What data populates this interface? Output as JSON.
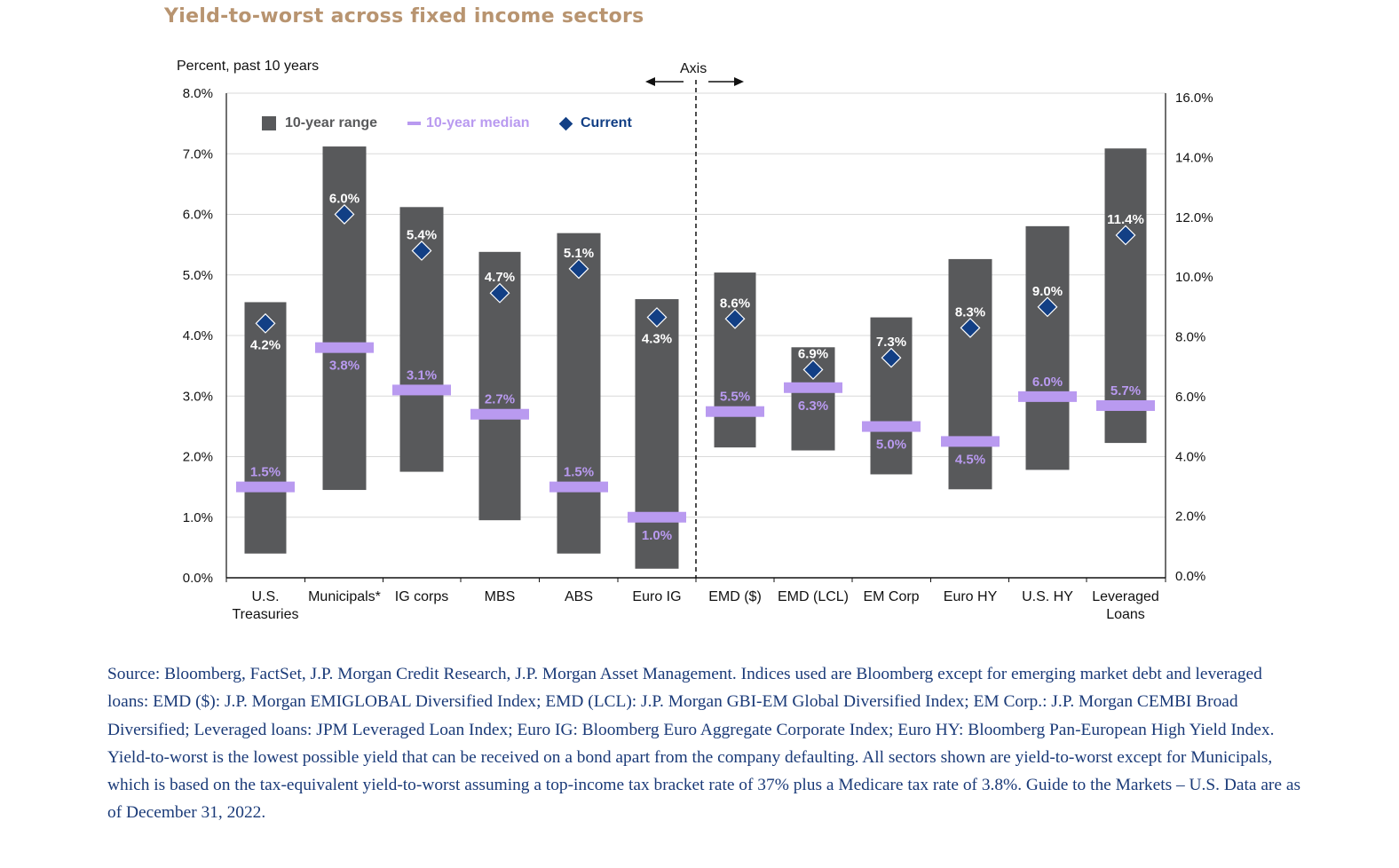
{
  "title": "Yield-to-worst across fixed income sectors",
  "subtitle": "Percent, past 10 years",
  "axis_note": "Axis",
  "colors": {
    "title": "#b89470",
    "range_bar": "#58595b",
    "median": "#b99af0",
    "current": "#123f85",
    "source_text": "#1a3a78"
  },
  "legend": {
    "range": "10-year range",
    "median": "10-year median",
    "current": "Current"
  },
  "chart_data": {
    "type": "bar",
    "categories": [
      "U.S. Treasuries",
      "Municipals*",
      "IG corps",
      "MBS",
      "ABS",
      "Euro IG",
      "EMD ($)",
      "EMD (LCL)",
      "EM Corp",
      "Euro HY",
      "U.S. HY",
      "Leveraged Loans"
    ],
    "axis": [
      "left",
      "left",
      "left",
      "left",
      "left",
      "left",
      "right",
      "right",
      "right",
      "right",
      "right",
      "right"
    ],
    "range_low": [
      0.4,
      1.45,
      1.75,
      0.95,
      0.4,
      0.15,
      4.3,
      4.2,
      3.4,
      2.9,
      3.55,
      4.45
    ],
    "range_high": [
      4.55,
      7.12,
      6.12,
      5.38,
      5.69,
      4.6,
      10.15,
      7.65,
      8.65,
      10.6,
      11.7,
      14.3
    ],
    "median": [
      1.5,
      3.8,
      3.1,
      2.7,
      1.5,
      1.0,
      5.5,
      6.3,
      5.0,
      4.5,
      6.0,
      5.7
    ],
    "median_label": [
      "1.5%",
      "3.8%",
      "3.1%",
      "2.7%",
      "1.5%",
      "1.0%",
      "5.5%",
      "6.3%",
      "5.0%",
      "4.5%",
      "6.0%",
      "5.7%"
    ],
    "current": [
      4.2,
      6.0,
      5.4,
      4.7,
      5.1,
      4.3,
      8.6,
      6.9,
      7.3,
      8.3,
      9.0,
      11.4
    ],
    "current_label": [
      "4.2%",
      "6.0%",
      "5.4%",
      "4.7%",
      "5.1%",
      "4.3%",
      "8.6%",
      "6.9%",
      "7.3%",
      "8.3%",
      "9.0%",
      "11.4%"
    ],
    "left_axis_ticks": [
      "0.0%",
      "1.0%",
      "2.0%",
      "3.0%",
      "4.0%",
      "5.0%",
      "6.0%",
      "7.0%",
      "8.0%"
    ],
    "right_axis_ticks": [
      "0.0%",
      "2.0%",
      "4.0%",
      "6.0%",
      "8.0%",
      "10.0%",
      "12.0%",
      "14.0%",
      "16.0%"
    ],
    "ylim_left": [
      0,
      8
    ],
    "ylim_right": [
      0,
      16
    ],
    "grid": true,
    "legend_position": "top-left"
  },
  "source": "Source: Bloomberg, FactSet, J.P. Morgan Credit Research, J.P. Morgan Asset Management. Indices used are Bloomberg except for emerging market debt and leveraged loans: EMD ($): J.P. Morgan EMIGLOBAL Diversified Index; EMD (LCL): J.P. Morgan GBI-EM Global Diversified Index; EM Corp.: J.P. Morgan CEMBI Broad Diversified; Leveraged loans: JPM Leveraged Loan Index; Euro IG: Bloomberg Euro Aggregate Corporate Index; Euro HY: Bloomberg Pan-European High Yield Index. Yield-to-worst is the lowest possible yield that can be received on a bond apart from the company defaulting. All sectors shown are yield-to-worst except for Municipals, which is based on the tax-equivalent yield-to-worst assuming a top-income tax bracket rate of 37% plus a Medicare tax rate of 3.8%. Guide to the Markets – U.S. Data are as of December 31, 2022."
}
